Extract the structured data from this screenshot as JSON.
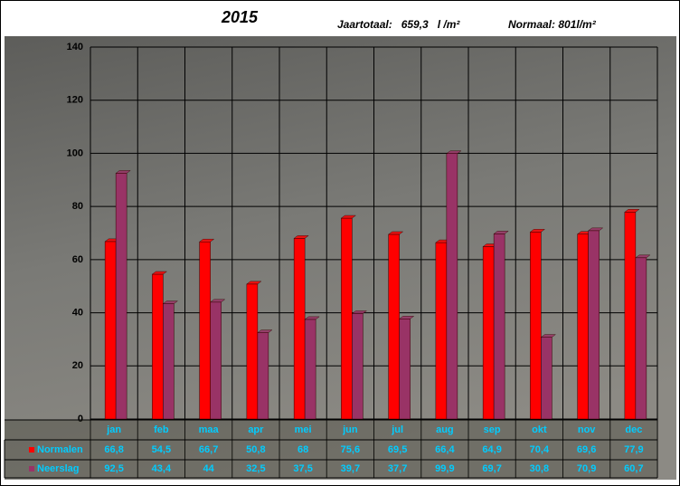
{
  "chart_data": {
    "type": "bar",
    "title": "2015",
    "subtitle": "Jaartotaal:   659,3   l /m²",
    "annotation": "Normaal: 801l/m²",
    "categories": [
      "jan",
      "feb",
      "maa",
      "apr",
      "mei",
      "jun",
      "jul",
      "aug",
      "sep",
      "okt",
      "nov",
      "dec"
    ],
    "series": [
      {
        "name": "Normalen",
        "color": "#ff0000",
        "values": [
          66.8,
          54.5,
          66.7,
          50.8,
          68,
          75.6,
          69.5,
          66.4,
          64.9,
          70.4,
          69.6,
          77.9
        ],
        "value_labels": [
          "66,8",
          "54,5",
          "66,7",
          "50,8",
          "68",
          "75,6",
          "69,5",
          "66,4",
          "64,9",
          "70,4",
          "69,6",
          "77,9"
        ]
      },
      {
        "name": "Neerslag",
        "color": "#993366",
        "values": [
          92.5,
          43.4,
          44,
          32.5,
          37.5,
          39.7,
          37.7,
          99.9,
          69.7,
          30.8,
          70.9,
          60.7
        ],
        "value_labels": [
          "92,5",
          "43,4",
          "44",
          "32,5",
          "37,5",
          "39,7",
          "37,7",
          "99,9",
          "69,7",
          "30,8",
          "70,9",
          "60,7"
        ]
      }
    ],
    "ylim": [
      0,
      140
    ],
    "yticks": [
      0,
      20,
      40,
      60,
      80,
      100,
      120,
      140
    ],
    "grid": true
  }
}
